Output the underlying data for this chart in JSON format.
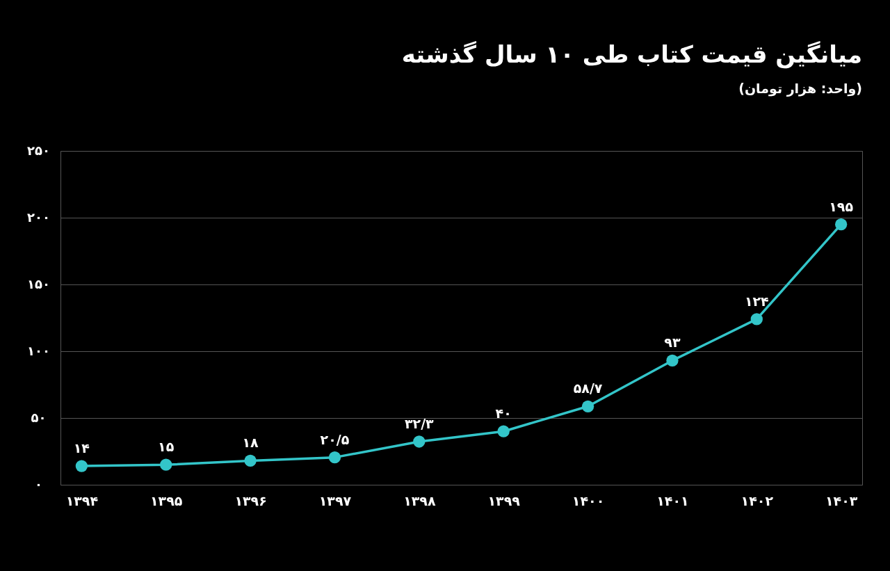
{
  "chart_data": {
    "type": "line",
    "title": "میانگین قیمت کتاب طی ۱۰ سال گذشته",
    "subtitle": "(واحد: هزار تومان)",
    "categories": [
      "۱۳۹۴",
      "۱۳۹۵",
      "۱۳۹۶",
      "۱۳۹۷",
      "۱۳۹۸",
      "۱۳۹۹",
      "۱۴۰۰",
      "۱۴۰۱",
      "۱۴۰۲",
      "۱۴۰۳"
    ],
    "series": [
      {
        "color": "#33c5c9",
        "values": [
          14,
          15,
          18,
          20.5,
          32.3,
          40,
          58.7,
          93,
          124,
          195
        ],
        "value_labels": [
          "۱۴",
          "۱۵",
          "۱۸",
          "۲۰/۵",
          "۳۲/۳",
          "۴۰",
          "۵۸/۷",
          "۹۳",
          "۱۲۴",
          "۱۹۵"
        ]
      }
    ],
    "ylim": [
      0,
      250
    ],
    "yticks": [
      {
        "value": 0,
        "label": "۰"
      },
      {
        "value": 50,
        "label": "۵۰"
      },
      {
        "value": 100,
        "label": "۱۰۰"
      },
      {
        "value": 150,
        "label": "۱۵۰"
      },
      {
        "value": 200,
        "label": "۲۰۰"
      },
      {
        "value": 250,
        "label": "۲۵۰"
      }
    ],
    "grid": "y",
    "marker": "circle",
    "line_style": "solid"
  }
}
